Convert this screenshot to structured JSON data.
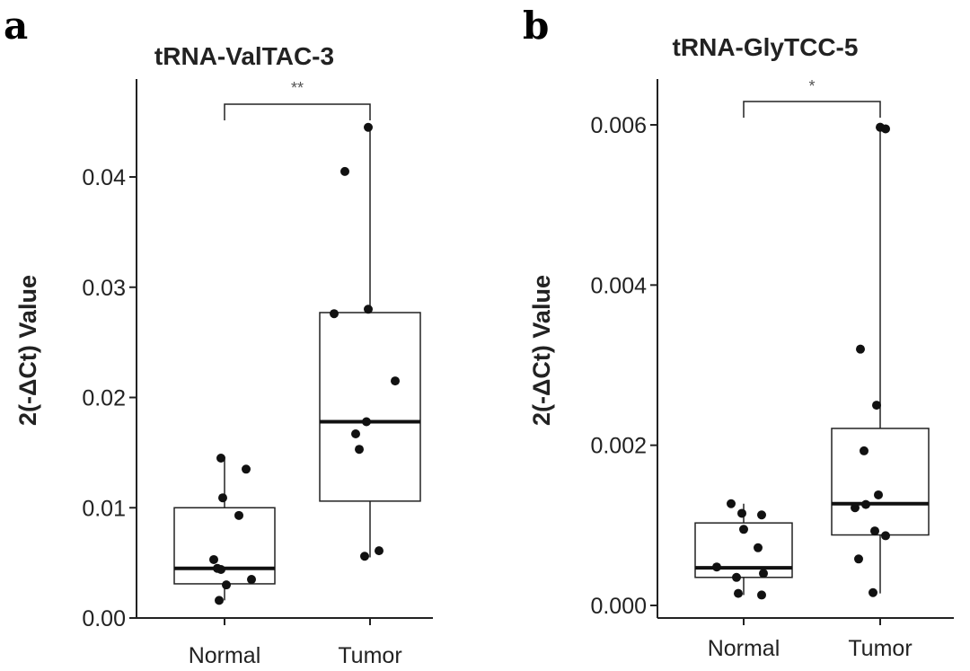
{
  "panels": [
    {
      "letter": "a"
    },
    {
      "letter": "b"
    }
  ],
  "chart_data": [
    {
      "type": "boxplot",
      "panel": "a",
      "title": "tRNA-ValTAC-3",
      "ylabel": "2(-ΔCt) Value",
      "ylim": [
        0,
        0.048
      ],
      "yticks": [
        0,
        0.01,
        0.02,
        0.03,
        0.04
      ],
      "ytick_labels": [
        "0.00",
        "0.01",
        "0.02",
        "0.03",
        "0.04"
      ],
      "categories": [
        "Normal",
        "Tumor"
      ],
      "boxes": [
        {
          "name": "Normal",
          "q1": 0.0031,
          "median": 0.0045,
          "q3": 0.01,
          "whisker_low": 0.0016,
          "whisker_high": 0.0144
        },
        {
          "name": "Tumor",
          "q1": 0.0106,
          "median": 0.0178,
          "q3": 0.0277,
          "whisker_low": 0.0055,
          "whisker_high": 0.0444
        }
      ],
      "points": [
        [
          0.0145,
          0.0109,
          0.0135,
          0.0093,
          0.0053,
          0.0044,
          0.0045,
          0.0035,
          0.003,
          0.0016
        ],
        [
          0.0445,
          0.0405,
          0.0276,
          0.028,
          0.0215,
          0.0178,
          0.0167,
          0.0153,
          0.0061,
          0.0056
        ]
      ],
      "significance": "**"
    },
    {
      "type": "boxplot",
      "panel": "b",
      "title": "tRNA-GlyTCC-5",
      "ylabel": "2(-ΔCt) Value",
      "ylim": [
        0,
        0.0065
      ],
      "yticks": [
        0,
        0.002,
        0.004,
        0.006
      ],
      "ytick_labels": [
        "0.000",
        "0.002",
        "0.004",
        "0.006"
      ],
      "categories": [
        "Normal",
        "Tumor"
      ],
      "boxes": [
        {
          "name": "Normal",
          "q1": 0.00035,
          "median": 0.00047,
          "q3": 0.00103,
          "whisker_low": 0.00013,
          "whisker_high": 0.00127
        },
        {
          "name": "Tumor",
          "q1": 0.00088,
          "median": 0.00127,
          "q3": 0.00221,
          "whisker_low": 0.00015,
          "whisker_high": 0.00597
        }
      ],
      "points": [
        [
          0.00127,
          0.00115,
          0.00113,
          0.00095,
          0.00072,
          0.00048,
          0.0004,
          0.00035,
          0.00015,
          0.00013
        ],
        [
          0.00597,
          0.00595,
          0.0032,
          0.0025,
          0.00193,
          0.00138,
          0.00126,
          0.00122,
          0.00093,
          0.00087,
          0.00058,
          0.00016
        ]
      ],
      "significance": "*"
    }
  ]
}
